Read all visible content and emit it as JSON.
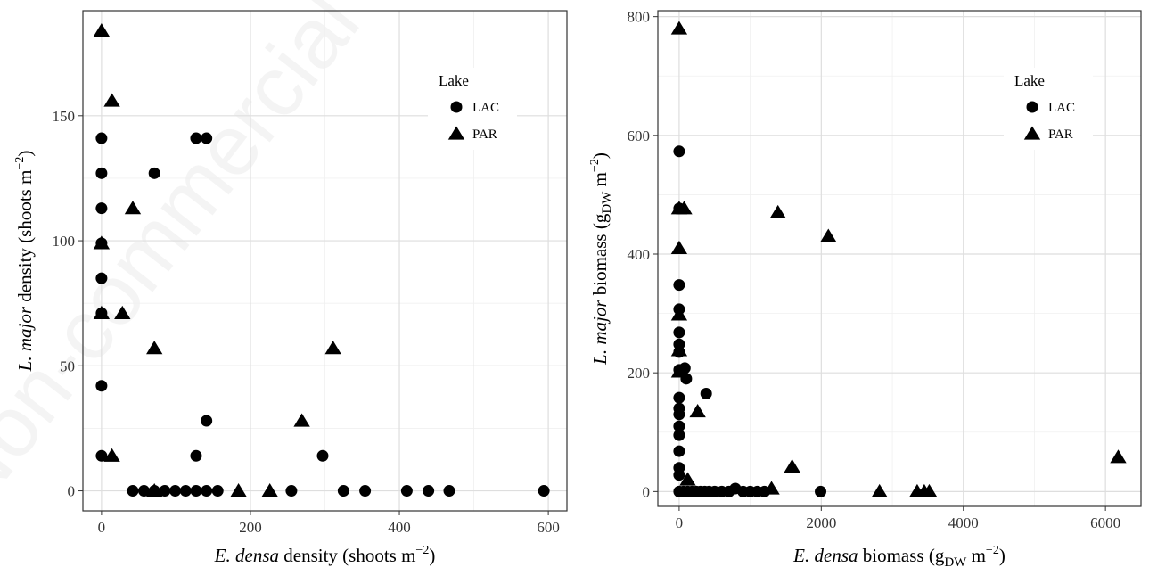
{
  "watermark": "Non-commercial use only",
  "chart_data": [
    {
      "type": "scatter",
      "xlabel_italic": "E. densa",
      "xlabel_rest": "density (shoots m",
      "xlabel_sup": "−2",
      "xlabel_close": ")",
      "ylabel_italic": "L. major",
      "ylabel_rest": "density (shoots m",
      "ylabel_sup": "−2",
      "ylabel_close": ")",
      "xlim": [
        -25,
        625
      ],
      "ylim": [
        -8,
        192
      ],
      "xticks": [
        0,
        200,
        400,
        600
      ],
      "yticks": [
        0,
        50,
        100,
        150
      ],
      "grid": true,
      "legend": {
        "title": "Lake",
        "position": "top-right",
        "entries": [
          {
            "label": "LAC",
            "marker": "circle"
          },
          {
            "label": "PAR",
            "marker": "triangle"
          }
        ]
      },
      "series": [
        {
          "name": "LAC",
          "marker": "circle",
          "points": [
            [
              0,
              141
            ],
            [
              0,
              127
            ],
            [
              0,
              113
            ],
            [
              0,
              99
            ],
            [
              0,
              85
            ],
            [
              0,
              71
            ],
            [
              0,
              42
            ],
            [
              0,
              14
            ],
            [
              71,
              127
            ],
            [
              127,
              141
            ],
            [
              141,
              141
            ],
            [
              141,
              28
            ],
            [
              127,
              14
            ],
            [
              297,
              14
            ],
            [
              42,
              0
            ],
            [
              57,
              0
            ],
            [
              71,
              0
            ],
            [
              85,
              0
            ],
            [
              99,
              0
            ],
            [
              113,
              0
            ],
            [
              127,
              0
            ],
            [
              141,
              0
            ],
            [
              156,
              0
            ],
            [
              255,
              0
            ],
            [
              325,
              0
            ],
            [
              354,
              0
            ],
            [
              410,
              0
            ],
            [
              439,
              0
            ],
            [
              467,
              0
            ],
            [
              594,
              0
            ]
          ]
        },
        {
          "name": "PAR",
          "marker": "triangle",
          "points": [
            [
              0,
              184
            ],
            [
              14,
              156
            ],
            [
              42,
              113
            ],
            [
              0,
              99
            ],
            [
              0,
              71
            ],
            [
              28,
              71
            ],
            [
              71,
              57
            ],
            [
              311,
              57
            ],
            [
              269,
              28
            ],
            [
              14,
              14
            ],
            [
              71,
              0
            ],
            [
              184,
              0
            ],
            [
              226,
              0
            ]
          ]
        }
      ]
    },
    {
      "type": "scatter",
      "xlabel_italic": "E. densa",
      "xlabel_rest": "biomass (g",
      "xlabel_sub": "DW",
      "xlabel_mid": " m",
      "xlabel_sup": "−2",
      "xlabel_close": ")",
      "ylabel_italic": "L. major",
      "ylabel_rest": "biomass (g",
      "ylabel_sub": "DW",
      "ylabel_mid": " m",
      "ylabel_sup": "−2",
      "ylabel_close": ")",
      "xlim": [
        -300,
        6500
      ],
      "ylim": [
        -25,
        810
      ],
      "xticks": [
        0,
        2000,
        4000,
        6000
      ],
      "yticks": [
        0,
        200,
        400,
        600,
        800
      ],
      "grid": true,
      "legend": {
        "title": "Lake",
        "position": "top-right",
        "entries": [
          {
            "label": "LAC",
            "marker": "circle"
          },
          {
            "label": "PAR",
            "marker": "triangle"
          }
        ]
      },
      "series": [
        {
          "name": "LAC",
          "marker": "circle",
          "points": [
            [
              0,
              573
            ],
            [
              0,
              477
            ],
            [
              0,
              348
            ],
            [
              0,
              307
            ],
            [
              0,
              268
            ],
            [
              0,
              248
            ],
            [
              0,
              235
            ],
            [
              0,
              205
            ],
            [
              0,
              158
            ],
            [
              0,
              140
            ],
            [
              0,
              130
            ],
            [
              0,
              110
            ],
            [
              0,
              95
            ],
            [
              0,
              68
            ],
            [
              0,
              40
            ],
            [
              0,
              28
            ],
            [
              0,
              0
            ],
            [
              80,
              208
            ],
            [
              100,
              190
            ],
            [
              380,
              165
            ],
            [
              60,
              0
            ],
            [
              120,
              0
            ],
            [
              180,
              0
            ],
            [
              240,
              0
            ],
            [
              300,
              0
            ],
            [
              360,
              0
            ],
            [
              420,
              0
            ],
            [
              500,
              0
            ],
            [
              600,
              0
            ],
            [
              700,
              0
            ],
            [
              790,
              5
            ],
            [
              900,
              0
            ],
            [
              1000,
              0
            ],
            [
              1100,
              0
            ],
            [
              1200,
              0
            ],
            [
              1990,
              0
            ]
          ]
        },
        {
          "name": "PAR",
          "marker": "triangle",
          "points": [
            [
              0,
              780
            ],
            [
              0,
              477
            ],
            [
              70,
              477
            ],
            [
              0,
              410
            ],
            [
              0,
              298
            ],
            [
              0,
              238
            ],
            [
              0,
              202
            ],
            [
              1390,
              470
            ],
            [
              2100,
              430
            ],
            [
              260,
              135
            ],
            [
              120,
              20
            ],
            [
              1590,
              42
            ],
            [
              6180,
              58
            ],
            [
              1300,
              5
            ],
            [
              2820,
              0
            ],
            [
              3350,
              0
            ],
            [
              3450,
              0
            ],
            [
              3520,
              0
            ]
          ]
        }
      ]
    }
  ]
}
